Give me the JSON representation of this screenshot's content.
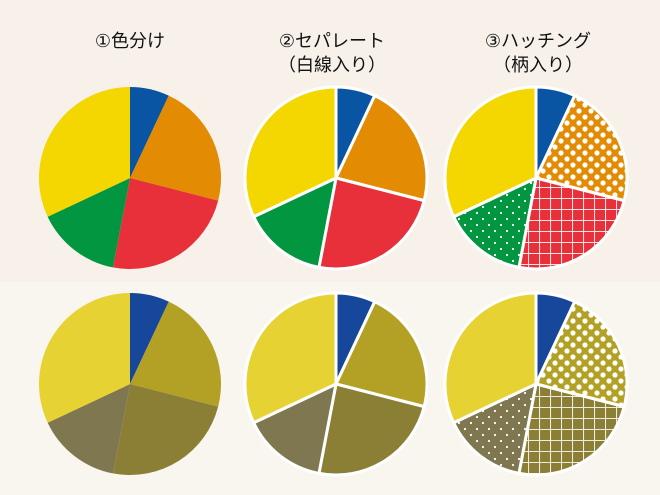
{
  "columns": [
    {
      "title": "①色分け",
      "subtitle": ""
    },
    {
      "title": "②セパレート",
      "subtitle": "（白線入り）"
    },
    {
      "title": "③ハッチング",
      "subtitle": "（柄入り）"
    }
  ],
  "chart_data": {
    "type": "pie",
    "slices": [
      {
        "value": 7,
        "color_normal": "#0a55a3",
        "color_cvd": "#17479a",
        "pattern": "none"
      },
      {
        "value": 22,
        "color_normal": "#e38b02",
        "color_cvd": "#b2a124",
        "pattern": "dots"
      },
      {
        "value": 24,
        "color_normal": "#e8303a",
        "color_cvd": "#8b7f35",
        "pattern": "grid"
      },
      {
        "value": 15,
        "color_normal": "#01963f",
        "color_cvd": "#7f774f",
        "pattern": "small-dots"
      },
      {
        "value": 32,
        "color_normal": "#f4d600",
        "color_cvd": "#e6d232",
        "pattern": "none"
      }
    ],
    "rows": [
      "normal",
      "cvd"
    ],
    "separator_color": "#ffffff"
  }
}
